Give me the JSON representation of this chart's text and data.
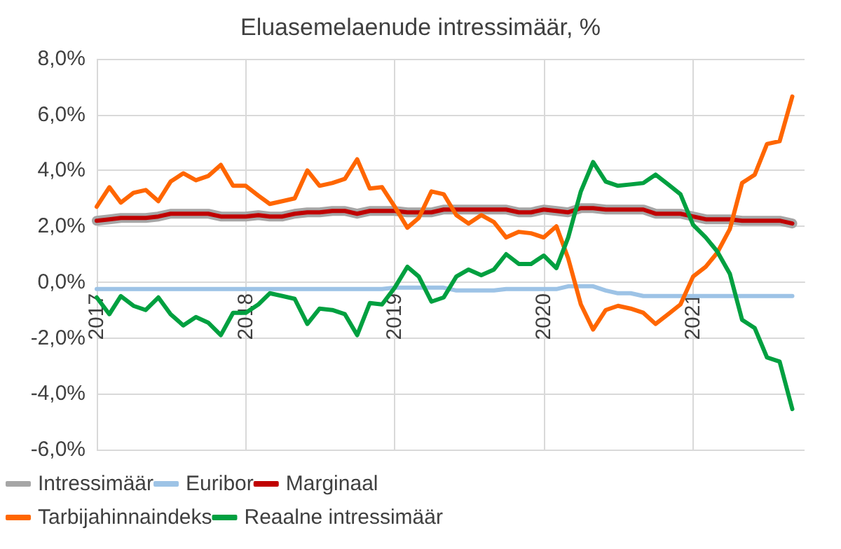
{
  "chart_data": {
    "type": "line",
    "title": "Eluasemelaenude intressimäär, %",
    "x": [
      "2017-01",
      "2017-02",
      "2017-03",
      "2017-04",
      "2017-05",
      "2017-06",
      "2017-07",
      "2017-08",
      "2017-09",
      "2017-10",
      "2017-11",
      "2017-12",
      "2018-01",
      "2018-02",
      "2018-03",
      "2018-04",
      "2018-05",
      "2018-06",
      "2018-07",
      "2018-08",
      "2018-09",
      "2018-10",
      "2018-11",
      "2018-12",
      "2019-01",
      "2019-02",
      "2019-03",
      "2019-04",
      "2019-05",
      "2019-06",
      "2019-07",
      "2019-08",
      "2019-09",
      "2019-10",
      "2019-11",
      "2019-12",
      "2020-01",
      "2020-02",
      "2020-03",
      "2020-04",
      "2020-05",
      "2020-06",
      "2020-07",
      "2020-08",
      "2020-09",
      "2020-10",
      "2020-11",
      "2020-12",
      "2021-01",
      "2021-02",
      "2021-03",
      "2021-04",
      "2021-05",
      "2021-06",
      "2021-07",
      "2021-08",
      "2021-09"
    ],
    "xlim": [
      "2017-01",
      "2021-10"
    ],
    "xticks": [
      {
        "value": "2017",
        "label": "2017"
      },
      {
        "value": "2018",
        "label": "2018"
      },
      {
        "value": "2019",
        "label": "2019"
      },
      {
        "value": "2020",
        "label": "2020"
      },
      {
        "value": "2021",
        "label": "2021"
      }
    ],
    "ylim": [
      -6,
      8
    ],
    "yticks": [
      {
        "value": -6,
        "label": "-6,0%"
      },
      {
        "value": -4,
        "label": "-4,0%"
      },
      {
        "value": -2,
        "label": "-2,0%"
      },
      {
        "value": 0,
        "label": "0,0%"
      },
      {
        "value": 2,
        "label": "2,0%"
      },
      {
        "value": 4,
        "label": "4,0%"
      },
      {
        "value": 6,
        "label": "6,0%"
      },
      {
        "value": 8,
        "label": "8,0%"
      }
    ],
    "grid": true,
    "legend": "bottom",
    "marker": "none",
    "line_style": "solid",
    "series": [
      {
        "name": "Intressimäär",
        "color": "#a6a6a6",
        "values": [
          2.2,
          2.25,
          2.3,
          2.3,
          2.3,
          2.35,
          2.45,
          2.45,
          2.45,
          2.45,
          2.35,
          2.35,
          2.35,
          2.4,
          2.35,
          2.35,
          2.45,
          2.5,
          2.5,
          2.55,
          2.55,
          2.45,
          2.55,
          2.55,
          2.55,
          2.5,
          2.5,
          2.5,
          2.6,
          2.6,
          2.6,
          2.6,
          2.6,
          2.6,
          2.5,
          2.5,
          2.6,
          2.55,
          2.5,
          2.65,
          2.65,
          2.6,
          2.6,
          2.6,
          2.6,
          2.45,
          2.45,
          2.45,
          2.35,
          2.25,
          2.25,
          2.25,
          2.2,
          2.2,
          2.2,
          2.2,
          2.1
        ]
      },
      {
        "name": "Euribor",
        "color": "#9dc3e6",
        "values": [
          -0.25,
          -0.25,
          -0.25,
          -0.25,
          -0.25,
          -0.25,
          -0.25,
          -0.25,
          -0.25,
          -0.25,
          -0.25,
          -0.25,
          -0.25,
          -0.25,
          -0.25,
          -0.25,
          -0.25,
          -0.25,
          -0.25,
          -0.25,
          -0.25,
          -0.25,
          -0.25,
          -0.25,
          -0.2,
          -0.2,
          -0.2,
          -0.2,
          -0.2,
          -0.3,
          -0.3,
          -0.3,
          -0.3,
          -0.25,
          -0.25,
          -0.25,
          -0.25,
          -0.25,
          -0.15,
          -0.15,
          -0.15,
          -0.3,
          -0.4,
          -0.4,
          -0.5,
          -0.5,
          -0.5,
          -0.5,
          -0.5,
          -0.5,
          -0.5,
          -0.5,
          -0.5,
          -0.5,
          -0.5,
          -0.5,
          -0.5
        ]
      },
      {
        "name": "Marginaal",
        "color": "#c00000",
        "values": [
          2.2,
          2.25,
          2.3,
          2.3,
          2.3,
          2.35,
          2.45,
          2.45,
          2.45,
          2.45,
          2.35,
          2.35,
          2.35,
          2.4,
          2.35,
          2.35,
          2.45,
          2.5,
          2.5,
          2.55,
          2.55,
          2.45,
          2.55,
          2.55,
          2.55,
          2.5,
          2.5,
          2.5,
          2.6,
          2.6,
          2.6,
          2.6,
          2.6,
          2.6,
          2.5,
          2.5,
          2.6,
          2.55,
          2.5,
          2.65,
          2.65,
          2.6,
          2.6,
          2.6,
          2.6,
          2.45,
          2.45,
          2.45,
          2.35,
          2.25,
          2.25,
          2.25,
          2.2,
          2.2,
          2.2,
          2.2,
          2.1
        ]
      },
      {
        "name": "Tarbijahinnaindeks",
        "color": "#ff6600",
        "values": [
          2.7,
          3.4,
          2.85,
          3.2,
          3.3,
          2.9,
          3.6,
          3.9,
          3.65,
          3.8,
          4.2,
          3.45,
          3.45,
          3.1,
          2.8,
          2.9,
          3.0,
          4.0,
          3.45,
          3.55,
          3.7,
          4.4,
          3.35,
          3.4,
          2.7,
          1.95,
          2.3,
          3.25,
          3.15,
          2.4,
          2.1,
          2.4,
          2.15,
          1.6,
          1.8,
          1.75,
          1.6,
          2.0,
          0.85,
          -0.8,
          -1.7,
          -1.0,
          -0.85,
          -0.95,
          -1.1,
          -1.5,
          -1.15,
          -0.8,
          0.2,
          0.55,
          1.05,
          1.9,
          3.55,
          3.85,
          4.95,
          5.05,
          6.65
        ]
      },
      {
        "name": "Reaalne intressimäär",
        "color": "#00a040",
        "values": [
          -0.55,
          -1.15,
          -0.5,
          -0.85,
          -1.0,
          -0.55,
          -1.15,
          -1.55,
          -1.25,
          -1.45,
          -1.9,
          -1.1,
          -1.1,
          -0.8,
          -0.4,
          -0.5,
          -0.6,
          -1.5,
          -0.95,
          -1.0,
          -1.15,
          -1.9,
          -0.75,
          -0.8,
          -0.2,
          0.55,
          0.2,
          -0.7,
          -0.55,
          0.2,
          0.45,
          0.25,
          0.45,
          1.0,
          0.65,
          0.65,
          0.95,
          0.5,
          1.6,
          3.25,
          4.3,
          3.6,
          3.45,
          3.5,
          3.55,
          3.85,
          3.5,
          3.15,
          2.05,
          1.6,
          1.1,
          0.3,
          -1.35,
          -1.65,
          -2.7,
          -2.85,
          -4.55
        ]
      }
    ]
  }
}
